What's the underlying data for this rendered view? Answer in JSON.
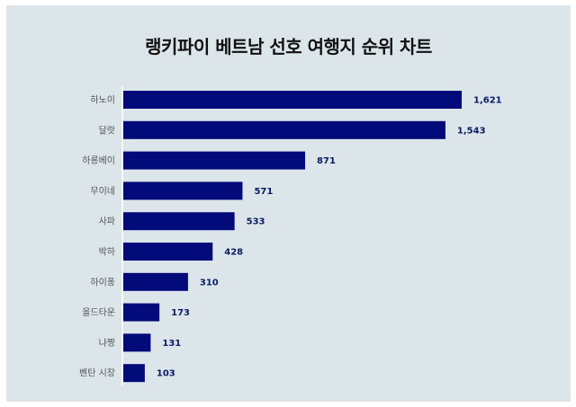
{
  "chart_data": {
    "type": "bar",
    "orientation": "horizontal",
    "title": "랭키파이 베트남 선호 여행지 순위 차트",
    "categories": [
      "하노이",
      "달랏",
      "하롱베이",
      "무이네",
      "사파",
      "박하",
      "하이퐁",
      "올드타운",
      "냐짱",
      "벤탄 시장"
    ],
    "values": [
      1621,
      1543,
      871,
      571,
      533,
      428,
      310,
      173,
      131,
      103
    ],
    "value_labels": [
      "1,621",
      "1,543",
      "871",
      "571",
      "533",
      "428",
      "310",
      "173",
      "131",
      "103"
    ],
    "xlim": [
      0,
      1621
    ],
    "grid": false,
    "colors": {
      "bar": "#030a7a",
      "background": "#dce6ea",
      "value_text": "#0b1a66"
    }
  }
}
